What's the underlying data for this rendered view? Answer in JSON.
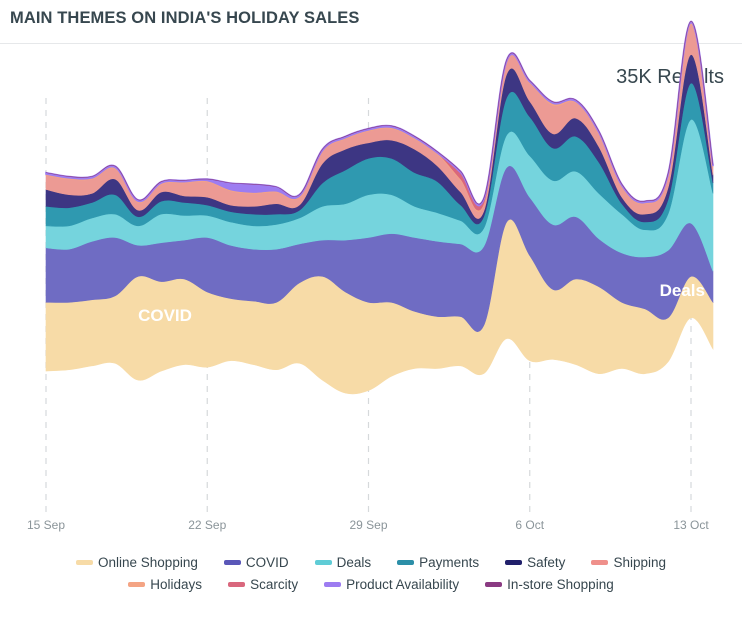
{
  "header": {
    "title": "MAIN THEMES ON INDIA'S HOLIDAY SALES"
  },
  "results_label": "35K Results",
  "chart_data": {
    "type": "area",
    "subtype": "streamgraph",
    "title": "MAIN THEMES ON INDIA'S HOLIDAY SALES",
    "xlabel": "",
    "ylabel": "",
    "grid": "vertical dashed lines at labeled ticks",
    "legend_position": "bottom",
    "x": [
      "15 Sep",
      "16 Sep",
      "17 Sep",
      "18 Sep",
      "19 Sep",
      "20 Sep",
      "21 Sep",
      "22 Sep",
      "23 Sep",
      "24 Sep",
      "25 Sep",
      "26 Sep",
      "27 Sep",
      "28 Sep",
      "29 Sep",
      "30 Sep",
      "1 Oct",
      "2 Oct",
      "3 Oct",
      "4 Oct",
      "5 Oct",
      "6 Oct",
      "7 Oct",
      "8 Oct",
      "9 Oct",
      "10 Oct",
      "11 Oct",
      "12 Oct",
      "13 Oct",
      "14 Oct"
    ],
    "x_ticks": [
      "15 Sep",
      "22 Sep",
      "29 Sep",
      "6 Oct",
      "13 Oct"
    ],
    "y_range": [
      0,
      1600
    ],
    "baseline": [
      555,
      560,
      575,
      585,
      520,
      555,
      580,
      570,
      595,
      580,
      560,
      585,
      520,
      470,
      480,
      535,
      565,
      565,
      575,
      545,
      680,
      595,
      600,
      580,
      545,
      565,
      545,
      590,
      760,
      640
    ],
    "series": [
      {
        "name": "Online Shopping",
        "color": "#f7dba7",
        "values": [
          265,
          260,
          255,
          260,
          400,
          345,
          330,
          290,
          240,
          245,
          260,
          310,
          400,
          390,
          340,
          285,
          220,
          200,
          190,
          185,
          450,
          405,
          270,
          330,
          335,
          255,
          250,
          170,
          160,
          180
        ]
      },
      {
        "name": "COVID",
        "color": "#6f6cc3",
        "values": [
          210,
          205,
          225,
          225,
          120,
          150,
          150,
          210,
          205,
          200,
          205,
          150,
          140,
          200,
          250,
          265,
          285,
          290,
          280,
          305,
          210,
          225,
          250,
          240,
          185,
          190,
          200,
          260,
          205,
          120
        ]
      },
      {
        "name": "Deals",
        "color": "#75d4dd",
        "values": [
          85,
          90,
          90,
          90,
          75,
          110,
          95,
          85,
          90,
          90,
          95,
          100,
          130,
          140,
          165,
          150,
          120,
          110,
          90,
          70,
          125,
          160,
          170,
          175,
          175,
          150,
          105,
          140,
          400,
          300
        ]
      },
      {
        "name": "Payments",
        "color": "#2f99b0",
        "values": [
          75,
          70,
          60,
          75,
          35,
          50,
          50,
          40,
          40,
          45,
          40,
          30,
          90,
          130,
          140,
          140,
          130,
          120,
          60,
          45,
          145,
          150,
          125,
          135,
          120,
          40,
          30,
          55,
          140,
          40
        ]
      },
      {
        "name": "Safety",
        "color": "#3d3683",
        "values": [
          65,
          50,
          35,
          60,
          25,
          35,
          25,
          30,
          25,
          30,
          40,
          20,
          75,
          80,
          60,
          70,
          90,
          60,
          50,
          20,
          90,
          60,
          55,
          70,
          60,
          25,
          30,
          45,
          110,
          30
        ]
      },
      {
        "name": "Shipping",
        "color": "#ec9a94",
        "values": [
          55,
          60,
          55,
          40,
          30,
          30,
          50,
          60,
          55,
          50,
          45,
          30,
          45,
          40,
          45,
          45,
          40,
          45,
          45,
          25,
          45,
          70,
          110,
          60,
          50,
          40,
          40,
          45,
          115,
          30
        ]
      },
      {
        "name": "Holidays",
        "color": "#f4a484",
        "values": [
          5,
          5,
          5,
          5,
          5,
          5,
          5,
          5,
          5,
          5,
          5,
          5,
          5,
          5,
          5,
          5,
          5,
          5,
          5,
          5,
          5,
          5,
          8,
          5,
          5,
          5,
          5,
          5,
          8,
          5
        ]
      },
      {
        "name": "Scarcity",
        "color": "#d9677d",
        "values": [
          0,
          0,
          0,
          0,
          0,
          0,
          0,
          0,
          0,
          0,
          0,
          0,
          0,
          0,
          0,
          0,
          0,
          0,
          25,
          15,
          0,
          0,
          0,
          0,
          0,
          0,
          0,
          0,
          0,
          0
        ]
      },
      {
        "name": "Product Availability",
        "color": "#9d7cf1",
        "values": [
          5,
          5,
          5,
          5,
          5,
          5,
          5,
          5,
          25,
          30,
          15,
          5,
          5,
          5,
          5,
          5,
          5,
          5,
          5,
          5,
          5,
          5,
          5,
          5,
          5,
          5,
          5,
          5,
          5,
          5
        ]
      },
      {
        "name": "In-store Shopping",
        "color": "#8a3a82",
        "values": [
          0,
          0,
          0,
          0,
          0,
          0,
          0,
          0,
          0,
          0,
          0,
          0,
          0,
          0,
          0,
          0,
          0,
          0,
          0,
          0,
          0,
          0,
          0,
          0,
          0,
          0,
          0,
          0,
          0,
          0
        ]
      }
    ],
    "annotations": [
      {
        "text": "COVID",
        "series": "COVID",
        "x": "20 Sep"
      },
      {
        "text": "Deals",
        "series": "Deals",
        "x": "12 Oct"
      }
    ]
  },
  "legend": {
    "rows": [
      [
        {
          "label": "Online Shopping",
          "color": "#f7dba7"
        },
        {
          "label": "COVID",
          "color": "#5a57b8"
        },
        {
          "label": "Deals",
          "color": "#5fccd6"
        },
        {
          "label": "Payments",
          "color": "#2c8fa8"
        },
        {
          "label": "Safety",
          "color": "#21206b"
        },
        {
          "label": "Shipping",
          "color": "#ef908b"
        }
      ],
      [
        {
          "label": "Holidays",
          "color": "#f4a484"
        },
        {
          "label": "Scarcity",
          "color": "#d9677d"
        },
        {
          "label": "Product Availability",
          "color": "#9d7cf1"
        },
        {
          "label": "In-store Shopping",
          "color": "#8a3a82"
        }
      ]
    ]
  }
}
